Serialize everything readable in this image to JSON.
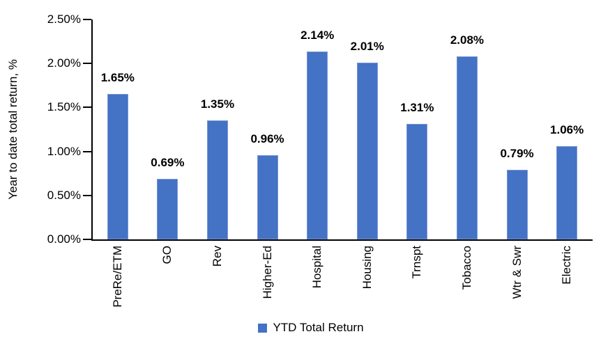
{
  "chart_data": {
    "type": "bar",
    "title": "",
    "xlabel": "",
    "ylabel": "Year to date total return, %",
    "categories": [
      "PreRe/ETM",
      "GO",
      "Rev",
      "Higher-Ed",
      "Hospital",
      "Housing",
      "Trnspt",
      "Tobacco",
      "Wtr & Swr",
      "Electric"
    ],
    "values": [
      1.65,
      0.69,
      1.35,
      0.96,
      2.14,
      2.01,
      1.31,
      2.08,
      0.79,
      1.06
    ],
    "value_labels": [
      "1.65%",
      "0.69%",
      "1.35%",
      "0.96%",
      "2.14%",
      "2.01%",
      "1.31%",
      "2.08%",
      "0.79%",
      "1.06%"
    ],
    "ylim": [
      0,
      2.5
    ],
    "yticks": [
      "0.00%",
      "0.50%",
      "1.00%",
      "1.50%",
      "2.00%",
      "2.50%"
    ],
    "grid": false,
    "bar_color": "#4472C4",
    "axis_color": "#000000",
    "legend_position": "bottom-center",
    "legend": [
      {
        "label": "YTD Total Return",
        "color": "#4472C4"
      }
    ]
  }
}
